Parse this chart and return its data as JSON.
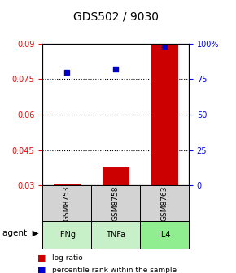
{
  "title": "GDS502 / 9030",
  "categories": [
    "GSM8753",
    "GSM8758",
    "GSM8763"
  ],
  "agents": [
    "IFNg",
    "TNFa",
    "IL4"
  ],
  "agent_colors": [
    "#c8f0c8",
    "#c8f0c8",
    "#90ee90"
  ],
  "sample_box_color": "#d3d3d3",
  "bar_values": [
    0.031,
    0.038,
    0.09
  ],
  "bar_baseline": 0.03,
  "bar_color": "#cc0000",
  "dot_values": [
    80,
    82,
    98
  ],
  "dot_color": "#0000cc",
  "ylim_left": [
    0.03,
    0.09
  ],
  "ylim_right": [
    0,
    100
  ],
  "yticks_left": [
    0.03,
    0.045,
    0.06,
    0.075,
    0.09
  ],
  "yticks_right": [
    0,
    25,
    50,
    75,
    100
  ],
  "ytick_labels_right": [
    "0",
    "25",
    "50",
    "75",
    "100%"
  ],
  "grid_values": [
    0.045,
    0.06,
    0.075
  ],
  "legend_log_ratio": "log ratio",
  "legend_percentile": "percentile rank within the sample",
  "agent_label": "agent",
  "bar_width": 0.55
}
